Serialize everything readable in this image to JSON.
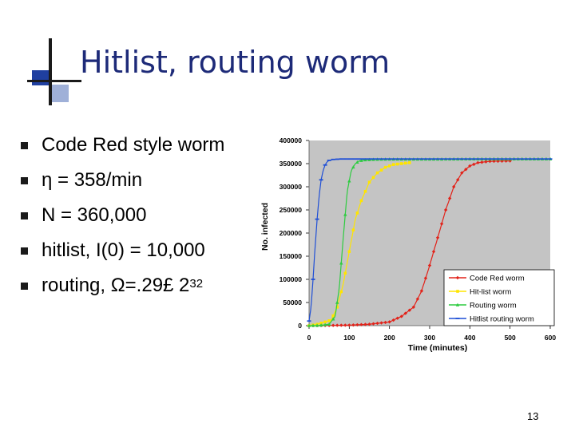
{
  "slide": {
    "title": "Hitlist, routing worm",
    "number": "13",
    "bullets": [
      {
        "text": "Code Red style worm"
      },
      {
        "text": "η = 358/min"
      },
      {
        "text": "N = 360,000"
      },
      {
        "text": "hitlist, I(0) = 10,000"
      },
      {
        "text": "routing, Ω=.29£ 2",
        "sup": "32"
      }
    ]
  },
  "chart_data": {
    "type": "line",
    "title": "",
    "xlabel": "Time (minutes)",
    "ylabel": "No. infected",
    "xlim": [
      0,
      600
    ],
    "ylim": [
      0,
      400000
    ],
    "xticks": [
      "0",
      "100",
      "200",
      "300",
      "400",
      "500",
      "600"
    ],
    "yticks": [
      "0",
      "50000",
      "100000",
      "150000",
      "200000",
      "250000",
      "300000",
      "350000",
      "400000"
    ],
    "legend_position": "bottom-right",
    "series": [
      {
        "name": "Code Red worm",
        "color": "#e2231a",
        "marker": "diamond",
        "x": [
          0,
          50,
          100,
          150,
          200,
          230,
          260,
          280,
          300,
          320,
          340,
          360,
          380,
          400,
          420,
          450,
          500
        ],
        "y": [
          0,
          500,
          1000,
          3000,
          8000,
          20000,
          40000,
          75000,
          130000,
          190000,
          250000,
          300000,
          330000,
          345000,
          352000,
          355000,
          356000
        ]
      },
      {
        "name": "Hit-list worm",
        "color": "#ffe500",
        "marker": "square",
        "x": [
          0,
          20,
          40,
          55,
          70,
          85,
          100,
          115,
          130,
          150,
          170,
          190,
          210,
          230,
          250
        ],
        "y": [
          0,
          3000,
          8000,
          12000,
          40000,
          90000,
          160000,
          230000,
          270000,
          310000,
          330000,
          342000,
          348000,
          350000,
          352000
        ]
      },
      {
        "name": "Routing worm",
        "color": "#2ecc40",
        "marker": "triangle",
        "x": [
          0,
          25,
          50,
          65,
          75,
          85,
          95,
          105,
          115,
          125,
          140,
          160,
          200,
          300,
          400,
          500,
          600
        ],
        "y": [
          0,
          500,
          3000,
          20000,
          80000,
          190000,
          290000,
          335000,
          350000,
          356000,
          358000,
          359000,
          359500,
          359500,
          360000,
          360000,
          360000
        ]
      },
      {
        "name": "Hitlist routing worm",
        "color": "#1f4fd6",
        "marker": "dash",
        "x": [
          0,
          5,
          10,
          15,
          20,
          25,
          30,
          35,
          40,
          45,
          50,
          60,
          80,
          100,
          200,
          300,
          400,
          500,
          600
        ],
        "y": [
          10000,
          40000,
          100000,
          170000,
          230000,
          280000,
          315000,
          335000,
          347000,
          354000,
          357000,
          359000,
          360000,
          360000,
          360000,
          360000,
          360000,
          360000,
          360000
        ]
      }
    ]
  }
}
